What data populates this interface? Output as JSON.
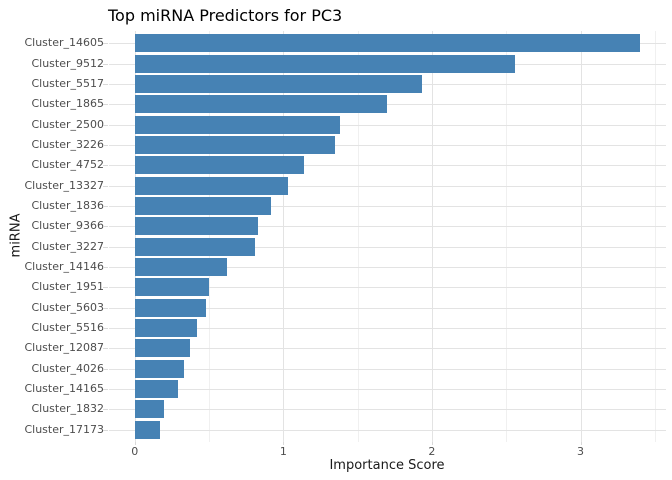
{
  "chart_data": {
    "type": "bar",
    "orientation": "horizontal",
    "title": "Top miRNA Predictors for PC3",
    "xlabel": "Importance Score",
    "ylabel": "miRNA",
    "categories": [
      "Cluster_14605",
      "Cluster_9512",
      "Cluster_5517",
      "Cluster_1865",
      "Cluster_2500",
      "Cluster_3226",
      "Cluster_4752",
      "Cluster_13327",
      "Cluster_1836",
      "Cluster_9366",
      "Cluster_3227",
      "Cluster_14146",
      "Cluster_1951",
      "Cluster_5603",
      "Cluster_5516",
      "Cluster_12087",
      "Cluster_4026",
      "Cluster_14165",
      "Cluster_1832",
      "Cluster_17173"
    ],
    "values": [
      3.4,
      2.56,
      1.93,
      1.7,
      1.38,
      1.35,
      1.14,
      1.03,
      0.92,
      0.83,
      0.81,
      0.62,
      0.5,
      0.48,
      0.42,
      0.37,
      0.33,
      0.29,
      0.2,
      0.17
    ],
    "x_ticks": [
      0,
      1,
      2,
      3
    ],
    "x_minor_ticks": [
      0.5,
      1.5,
      2.5,
      3.5
    ],
    "xlim": [
      -0.175,
      3.575
    ],
    "grid": "on",
    "legend": "none",
    "colors": {
      "bar": "#4682b4",
      "grid_major": "#e3e3e3",
      "grid_minor": "#f0f0f0",
      "tick_mark": "#d9d9d9",
      "axis_text": "#4d4d4d",
      "title_text": "#000000"
    }
  }
}
